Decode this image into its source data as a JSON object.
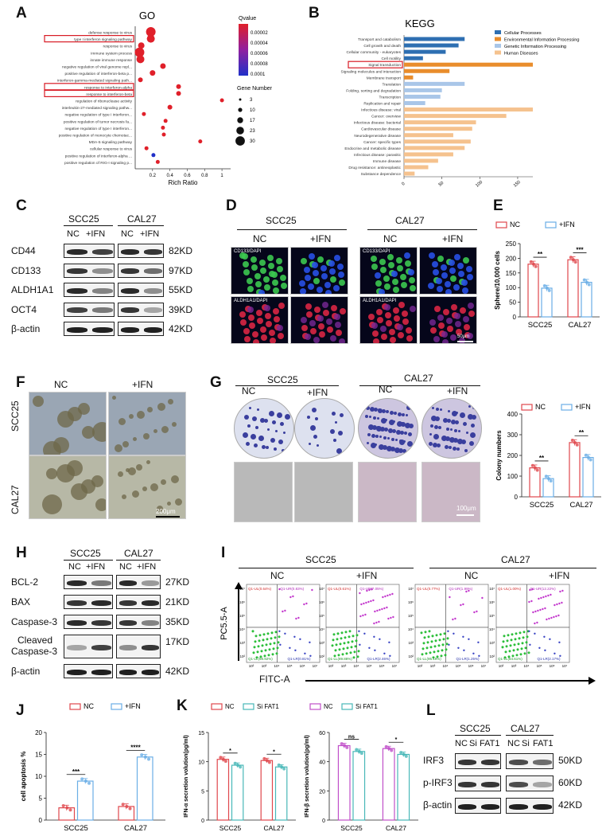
{
  "panel_letters": {
    "a": "A",
    "b": "B",
    "c": "C",
    "d": "D",
    "e": "E",
    "f": "F",
    "g": "G",
    "h": "H",
    "i": "I",
    "j": "J",
    "k": "K",
    "l": "L"
  },
  "colors": {
    "nc": "#e0474c",
    "ifn": "#6aaee6",
    "sifat1": "#48b8b8",
    "nc_purple": "#c04fc9",
    "go_high": "#e0202a",
    "go_low": "#2030c8",
    "kegg_cellular": "#2e6fb2",
    "kegg_env": "#e98d2c",
    "kegg_gene": "#a9c6e8",
    "kegg_disease": "#f5c28e"
  },
  "go": {
    "title": "GO",
    "terms": [
      "defense response to virus",
      "type I interferon signaling pathway",
      "response to virus",
      "immune system process",
      "innate immune response",
      "negative regulation of viral genome repl...",
      "positive regulation of interferon-beta p...",
      "interferon-gamma-mediated signaling path...",
      "response to interferon-alpha",
      "response to interferon-beta",
      "regulation of ribonuclease activity",
      "interleukin-27-mediated signaling pathw...",
      "negative regulation of type I interferon...",
      "positive regulation of tumor necrosis fa...",
      "negative regulation of type I interferon...",
      "positive regulation of monocyte chemotac...",
      "MDA-5 signaling pathway",
      "cellular response to virus",
      "positive regulation of interferon-alpha ...",
      "positive regulation of RIG-I signaling p..."
    ],
    "highlighted": [
      "type I interferon signaling pathway",
      "response to interferon-alpha",
      "response to interferon-beta"
    ],
    "xlabel": "Rich Ratio",
    "xticks": [
      "0.2",
      "0.4",
      "0.6",
      "0.8",
      "1"
    ],
    "qvalue_title": "Qvalue",
    "qvalue_ticks": [
      "0.00002",
      "0.00004",
      "0.00006",
      "0.00008",
      "0.0001"
    ],
    "gene_number_title": "Gene Number",
    "gene_number_ticks": [
      "3",
      "10",
      "17",
      "23",
      "30"
    ]
  },
  "kegg": {
    "title": "KEGG",
    "legend": [
      "Cellular Processes",
      "Environmental Information Processing",
      "Genetic Information Processing",
      "Human Diseases"
    ],
    "categories": [
      "Transport and catabolism",
      "Cell growth and death",
      "Cellular community - eukaryotes",
      "Cell motility",
      "Signal transduction",
      "Signaling molecules and interaction",
      "Membrane transport",
      "Translation",
      "Folding, sorting and degradation",
      "Transcription",
      "Replication and repair",
      "Infectious disease: viral",
      "Cancer: overview",
      "Infectious disease: bacterial",
      "Cardiovascular disease",
      "Neurodegenerative disease",
      "Cancer: specific types",
      "Endocrine and metabolic disease",
      "Infectious disease: parasitic",
      "Immune disease",
      "Drug resistance: antineoplastic",
      "Substance dependence"
    ],
    "highlighted": "Signal transduction",
    "xticks": [
      "0",
      "50",
      "100",
      "150"
    ]
  },
  "panel_c": {
    "cell_lines": [
      "SCC25",
      "CAL27"
    ],
    "conds": [
      "NC",
      "+IFN"
    ],
    "proteins": [
      "CD44",
      "CD133",
      "ALDH1A1",
      "OCT4",
      "β-actin"
    ],
    "sizes": [
      "82KD",
      "97KD",
      "55KD",
      "39KD",
      "42KD"
    ]
  },
  "panel_d": {
    "cell_lines": [
      "SCC25",
      "CAL27"
    ],
    "conds": [
      "NC",
      "+IFN",
      "NC",
      "+IFN"
    ],
    "stains": [
      "CD133/DAPI",
      "ALDH1A1/DAPI"
    ],
    "scale": "50μm"
  },
  "panel_e": {
    "legend": [
      "NC",
      "+IFN"
    ],
    "ylabel": "Sphere/10,000 cells",
    "yticks": [
      "0",
      "50",
      "100",
      "150",
      "200",
      "250"
    ],
    "categories": [
      "SCC25",
      "CAL27"
    ],
    "sig": [
      "**",
      "***"
    ]
  },
  "panel_f": {
    "conds": [
      "NC",
      "+IFN"
    ],
    "rows": [
      "SCC25",
      "CAL27"
    ],
    "scale": "200μm"
  },
  "panel_g": {
    "cell_lines": [
      "SCC25",
      "CAL27"
    ],
    "conds": [
      "NC",
      "+IFN",
      "NC",
      "+IFN"
    ],
    "scale": "100μm",
    "legend": [
      "NC",
      "+IFN"
    ],
    "ylabel": "Colony numbers",
    "yticks": [
      "0",
      "100",
      "200",
      "300",
      "400"
    ],
    "categories": [
      "SCC25",
      "CAL27"
    ],
    "sig": [
      "**",
      "**"
    ]
  },
  "panel_h": {
    "cell_lines": [
      "SCC25",
      "CAL27"
    ],
    "conds": [
      "NC",
      "+IFN"
    ],
    "proteins": [
      "BCL-2",
      "BAX",
      "Caspase-3",
      "Cleaved",
      "Caspase-3",
      "β-actin"
    ],
    "sizes": [
      "27KD",
      "21KD",
      "35KD",
      "17KD",
      "42KD"
    ]
  },
  "panel_i": {
    "cell_lines": [
      "SCC25",
      "CAL27"
    ],
    "conds": [
      "NC",
      "+IFN",
      "NC",
      "+IFN"
    ],
    "ylabel": "PC5.5-A",
    "xlabel": "FITC-A",
    "quadrants": [
      {
        "ul": "Q1-UL(0.64%)",
        "ur": "Q1-UR(0.83%)",
        "ll": "Q1-LL(98.92%)",
        "lr": "Q1-LR(0.81%)"
      },
      {
        "ul": "Q1-UL(0.61%)",
        "ur": "Q1-UR(7.05%)",
        "ll": "Q1-LL(89.88%)",
        "lr": "Q1-LR(2.46%)"
      },
      {
        "ul": "Q1-UL(0.77%)",
        "ur": "Q1-UR(1.99%)",
        "ll": "Q1-LL(95.19%)",
        "lr": "Q1-LR(1.25%)"
      },
      {
        "ul": "Q1-UL(1.00%)",
        "ur": "Q1-UR(12.22%)",
        "ll": "Q1-LL(84.61%)",
        "lr": "Q1-LR(2.17%)"
      }
    ],
    "ticks": [
      "10²",
      "10³",
      "10⁴",
      "10⁵",
      "10⁶",
      "10⁷"
    ]
  },
  "panel_j": {
    "legend": [
      "NC",
      "+IFN"
    ],
    "ylabel": "cell apoptosis %",
    "yticks": [
      "0",
      "5",
      "10",
      "15",
      "20"
    ],
    "categories": [
      "SCC25",
      "CAL27"
    ],
    "sig": [
      "***",
      "****"
    ]
  },
  "panel_k": {
    "legend1": [
      "NC",
      "Si FAT1"
    ],
    "legend2": [
      "NC",
      "Si FAT1"
    ],
    "ylabel1": "IFN-α secretion volution(pg/ml)",
    "ylabel2": "IFN-β secretion volution(pg/ml)",
    "yticks1": [
      "0",
      "5",
      "10",
      "15"
    ],
    "yticks2": [
      "0",
      "20",
      "40",
      "60"
    ],
    "categories": [
      "SCC25",
      "CAL27"
    ],
    "sig1": [
      "*",
      "*"
    ],
    "sig2": [
      "ns",
      "*"
    ]
  },
  "panel_l": {
    "cell_lines": [
      "SCC25",
      "CAL27"
    ],
    "conds": [
      "NC",
      "Si",
      "FAT1",
      "NC",
      "Si",
      "FAT1"
    ],
    "proteins": [
      "IRF3",
      "p-IRF3",
      "β-actin"
    ],
    "sizes": [
      "50KD",
      "60KD",
      "42KD"
    ]
  },
  "chart_data": [
    {
      "type": "scatter",
      "title": "GO",
      "xlabel": "Rich Ratio",
      "xlim": [
        0,
        1.1
      ],
      "x": [
        0.18,
        0.18,
        0.07,
        0.05,
        0.06,
        0.32,
        0.2,
        0.06,
        0.5,
        0.5,
        1.0,
        0.4,
        0.1,
        0.35,
        0.32,
        0.33,
        0.75,
        0.13,
        0.21,
        0.26
      ]
    },
    {
      "type": "bar",
      "title": "KEGG",
      "xlim": [
        0,
        170
      ],
      "values": [
        80,
        72,
        55,
        25,
        170,
        60,
        12,
        80,
        50,
        48,
        28,
        170,
        135,
        95,
        90,
        65,
        88,
        80,
        65,
        45,
        32,
        14
      ]
    },
    {
      "type": "bar",
      "title": "",
      "ylabel": "Sphere/10,000 cells",
      "categories": [
        "SCC25",
        "CAL27"
      ],
      "ylim": [
        0,
        250
      ],
      "series": [
        {
          "name": "NC",
          "values": [
            180,
            195
          ]
        },
        {
          "name": "+IFN",
          "values": [
            98,
            118
          ]
        }
      ]
    },
    {
      "type": "bar",
      "title": "",
      "ylabel": "Colony numbers",
      "categories": [
        "SCC25",
        "CAL27"
      ],
      "ylim": [
        0,
        400
      ],
      "series": [
        {
          "name": "NC",
          "values": [
            140,
            262
          ]
        },
        {
          "name": "+IFN",
          "values": [
            88,
            190
          ]
        }
      ]
    },
    {
      "type": "bar",
      "title": "",
      "ylabel": "cell apoptosis %",
      "categories": [
        "SCC25",
        "CAL27"
      ],
      "ylim": [
        0,
        20
      ],
      "series": [
        {
          "name": "NC",
          "values": [
            2.8,
            3.1
          ]
        },
        {
          "name": "+IFN",
          "values": [
            8.9,
            14.4
          ]
        }
      ]
    },
    {
      "type": "bar",
      "title": "",
      "ylabel": "IFN-α secretion volution(pg/ml)",
      "categories": [
        "SCC25",
        "CAL27"
      ],
      "ylim": [
        0,
        15
      ],
      "series": [
        {
          "name": "NC",
          "values": [
            10.4,
            10.2
          ]
        },
        {
          "name": "Si FAT1",
          "values": [
            9.4,
            9.1
          ]
        }
      ]
    },
    {
      "type": "bar",
      "title": "",
      "ylabel": "IFN-β secretion volution(pg/ml)",
      "categories": [
        "SCC25",
        "CAL27"
      ],
      "ylim": [
        0,
        60
      ],
      "series": [
        {
          "name": "NC",
          "values": [
            51,
            49
          ]
        },
        {
          "name": "Si FAT1",
          "values": [
            47,
            45
          ]
        }
      ]
    }
  ]
}
